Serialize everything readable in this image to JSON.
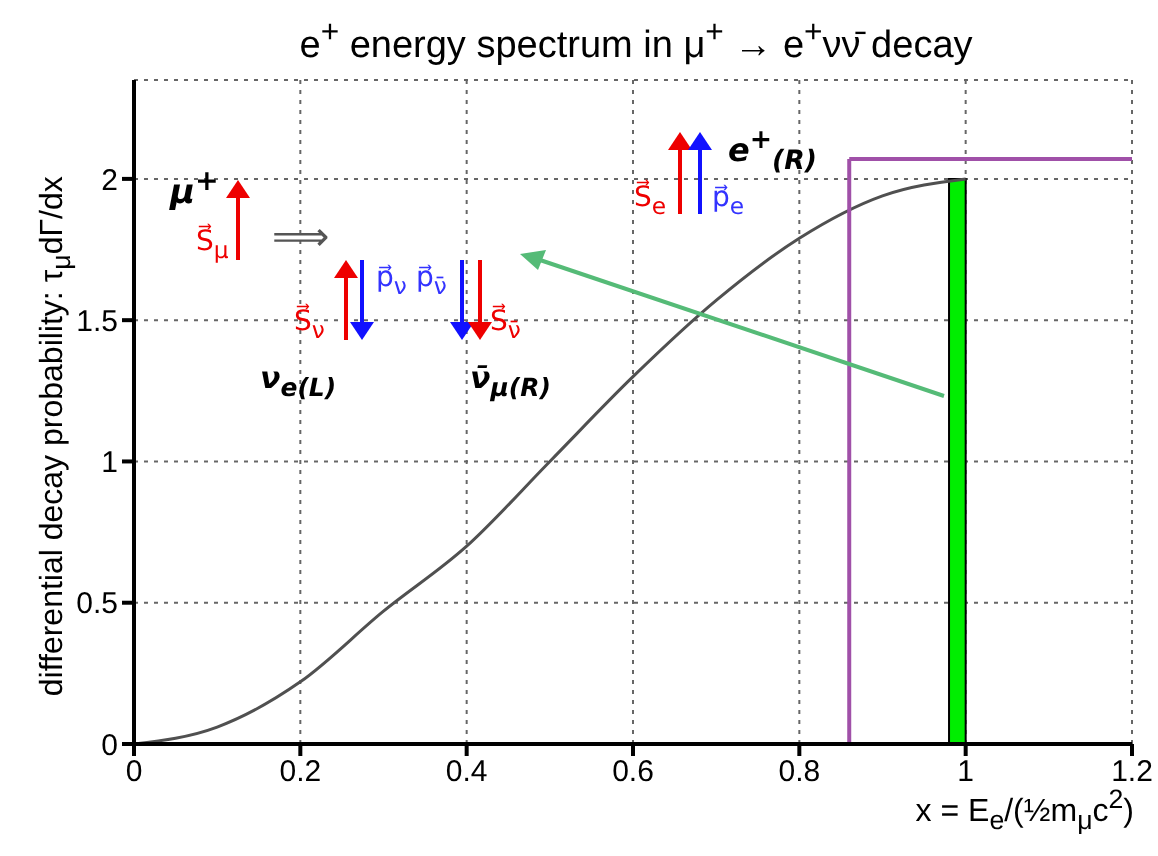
{
  "chart_data": {
    "type": "line",
    "title": "e$^{+}$ energy spectrum in μ$^{+}$ → e$^{+}$νν̄ decay",
    "xlabel": "x = E$_{e}$/(½m$_{μ}$c$^{2}$)",
    "ylabel": "differential decay probability:  τ$_{μ}$dΓ/dx",
    "series": [
      {
        "color": "#505050",
        "x": [
          0,
          0.1,
          0.2,
          0.3,
          0.4,
          0.5,
          0.6,
          0.7,
          0.8,
          0.9,
          1.0
        ],
        "values": [
          0,
          0.06,
          0.22,
          0.47,
          0.7,
          1.0,
          1.3,
          1.57,
          1.79,
          1.94,
          2.0
        ]
      },
      {
        "type": "histogram",
        "color": "#00ee00",
        "bins": [
          0.98,
          1.0
        ],
        "values": [
          2.0
        ]
      }
    ],
    "ref_lines": [
      {
        "axis": "x",
        "value": 0.86,
        "color": "#a050a8"
      },
      {
        "axis": "y",
        "value": 2.07,
        "color": "#a050a8"
      }
    ],
    "annotations": [
      "μ$^{+}$",
      "S⃗$_{μ}$",
      "⟹",
      "S⃗$_{e}$",
      "p⃗$_{e}$",
      "e$^{+}$$_{(R)}$",
      "S⃗$_{ν}$",
      "p⃗$_{ν}$",
      "ν$_{e(L)}$",
      "p⃗$_{ν̄}$",
      "S⃗$_{ν̄}$",
      "ν̄$_{μ(R)}$"
    ],
    "xlim": [
      0,
      1.2
    ],
    "xticks": [
      0,
      0.2,
      0.4,
      0.6,
      0.8,
      1,
      1.2
    ],
    "ylim": [
      0,
      2.35
    ],
    "yticks": [
      0,
      0.5,
      1,
      1.5,
      2
    ],
    "grid": true,
    "marker": "none",
    "line_style": "solid"
  }
}
